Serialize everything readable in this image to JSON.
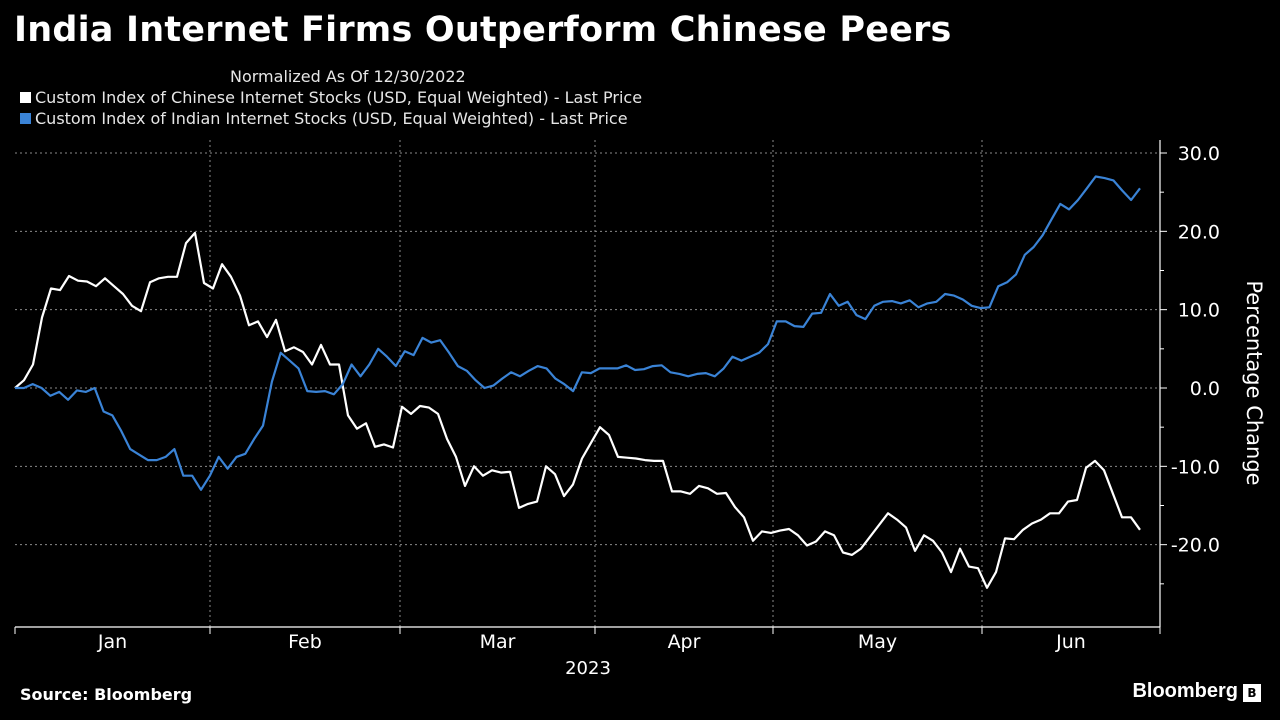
{
  "chart_data": {
    "type": "line",
    "title": "India Internet Firms Outperform Chinese Peers",
    "subtitle": "Normalized As Of 12/30/2022",
    "ylabel": "Percentage Change",
    "xlabel": "2023",
    "ylim": [
      -30,
      30
    ],
    "y_ticks": [
      "30.0",
      "20.0",
      "10.0",
      "0.0",
      "-10.0",
      "-20.0"
    ],
    "x_ticks": [
      "Jan",
      "Feb",
      "Mar",
      "Apr",
      "May",
      "Jun"
    ],
    "grid": true,
    "legend_position": "top-left",
    "series": [
      {
        "name": "Custom Index of Chinese Internet Stocks (USD, Equal Weighted) - Last Price",
        "color": "#ffffff",
        "values": [
          0,
          1,
          3,
          9,
          12.7,
          12.5,
          14.3,
          13.7,
          13.6,
          13.0,
          14.0,
          13.0,
          12.0,
          10.5,
          9.8,
          13.5,
          14.0,
          14.2,
          14.2,
          18.5,
          19.8,
          13.4,
          12.7,
          15.8,
          14.2,
          11.8,
          8.0,
          8.5,
          6.5,
          8.7,
          4.7,
          5.2,
          4.6,
          3.0,
          5.5,
          3.0,
          3.0,
          -3.5,
          -5.2,
          -4.5,
          -7.5,
          -7.2,
          -7.6,
          -2.4,
          -3.3,
          -2.3,
          -2.5,
          -3.3,
          -6.5,
          -8.8,
          -12.5,
          -10.0,
          -11.2,
          -10.5,
          -10.8,
          -10.7,
          -15.3,
          -14.8,
          -14.5,
          -10.0,
          -11.0,
          -13.8,
          -12.3,
          -9.0,
          -7.0,
          -5.0,
          -6.0,
          -8.8,
          -8.9,
          -9.0,
          -9.2,
          -9.3,
          -9.3,
          -13.2,
          -13.2,
          -13.5,
          -12.5,
          -12.8,
          -13.5,
          -13.4,
          -15.2,
          -16.5,
          -19.5,
          -18.3,
          -18.5,
          -18.2,
          -18.0,
          -18.8,
          -20.1,
          -19.6,
          -18.3,
          -18.8,
          -21.0,
          -21.3,
          -20.5,
          -19.0,
          -17.5,
          -16.0,
          -16.8,
          -17.8,
          -20.8,
          -18.8,
          -19.5,
          -21.0,
          -23.5,
          -20.5,
          -22.8,
          -23.0,
          -25.5,
          -23.5,
          -19.2,
          -19.3,
          -18.1,
          -17.3,
          -16.8,
          -16.0,
          -16.0,
          -14.5,
          -14.3,
          -10.2,
          -9.3,
          -10.5,
          -13.5,
          -16.5,
          -16.5,
          -18.1
        ]
      },
      {
        "name": "Custom Index of Indian Internet Stocks (USD, Equal Weighted) - Last Price",
        "color": "#3a83d6",
        "values": [
          0,
          0,
          0.5,
          0,
          -1,
          -0.5,
          -1.5,
          -0.3,
          -0.5,
          0,
          -3.0,
          -3.5,
          -5.5,
          -7.8,
          -8.5,
          -9.2,
          -9.2,
          -8.8,
          -7.8,
          -11.2,
          -11.2,
          -13.0,
          -11.2,
          -8.8,
          -10.3,
          -8.8,
          -8.4,
          -6.5,
          -4.8,
          0.8,
          4.5,
          3.5,
          2.5,
          -0.4,
          -0.5,
          -0.4,
          -0.8,
          0.5,
          3.0,
          1.5,
          3.0,
          5.0,
          4.0,
          2.8,
          4.7,
          4.2,
          6.4,
          5.8,
          6.1,
          4.5,
          2.8,
          2.2,
          1.0,
          0,
          0.3,
          1.2,
          2.0,
          1.5,
          2.2,
          2.8,
          2.5,
          1.2,
          0.5,
          -0.4,
          2.0,
          1.9,
          2.5,
          2.5,
          2.5,
          2.9,
          2.3,
          2.4,
          2.8,
          2.9,
          2.0,
          1.8,
          1.5,
          1.8,
          1.9,
          1.5,
          2.5,
          4.0,
          3.5,
          4.0,
          4.5,
          5.6,
          8.5,
          8.5,
          7.9,
          7.8,
          9.5,
          9.6,
          12.0,
          10.5,
          11.0,
          9.3,
          8.8,
          10.5,
          11.0,
          11.1,
          10.8,
          11.2,
          10.3,
          10.8,
          11.0,
          12.0,
          11.8,
          11.3,
          10.5,
          10.2,
          10.3,
          13.0,
          13.5,
          14.5,
          17.0,
          18.0,
          19.5,
          21.5,
          23.5,
          22.8,
          24.0,
          25.5,
          27.0,
          26.8,
          26.5,
          25.2,
          24.0,
          25.5
        ]
      }
    ]
  },
  "source_text": "Source: Bloomberg",
  "brand_text": "Bloomberg",
  "brand_icon_glyph": "B"
}
